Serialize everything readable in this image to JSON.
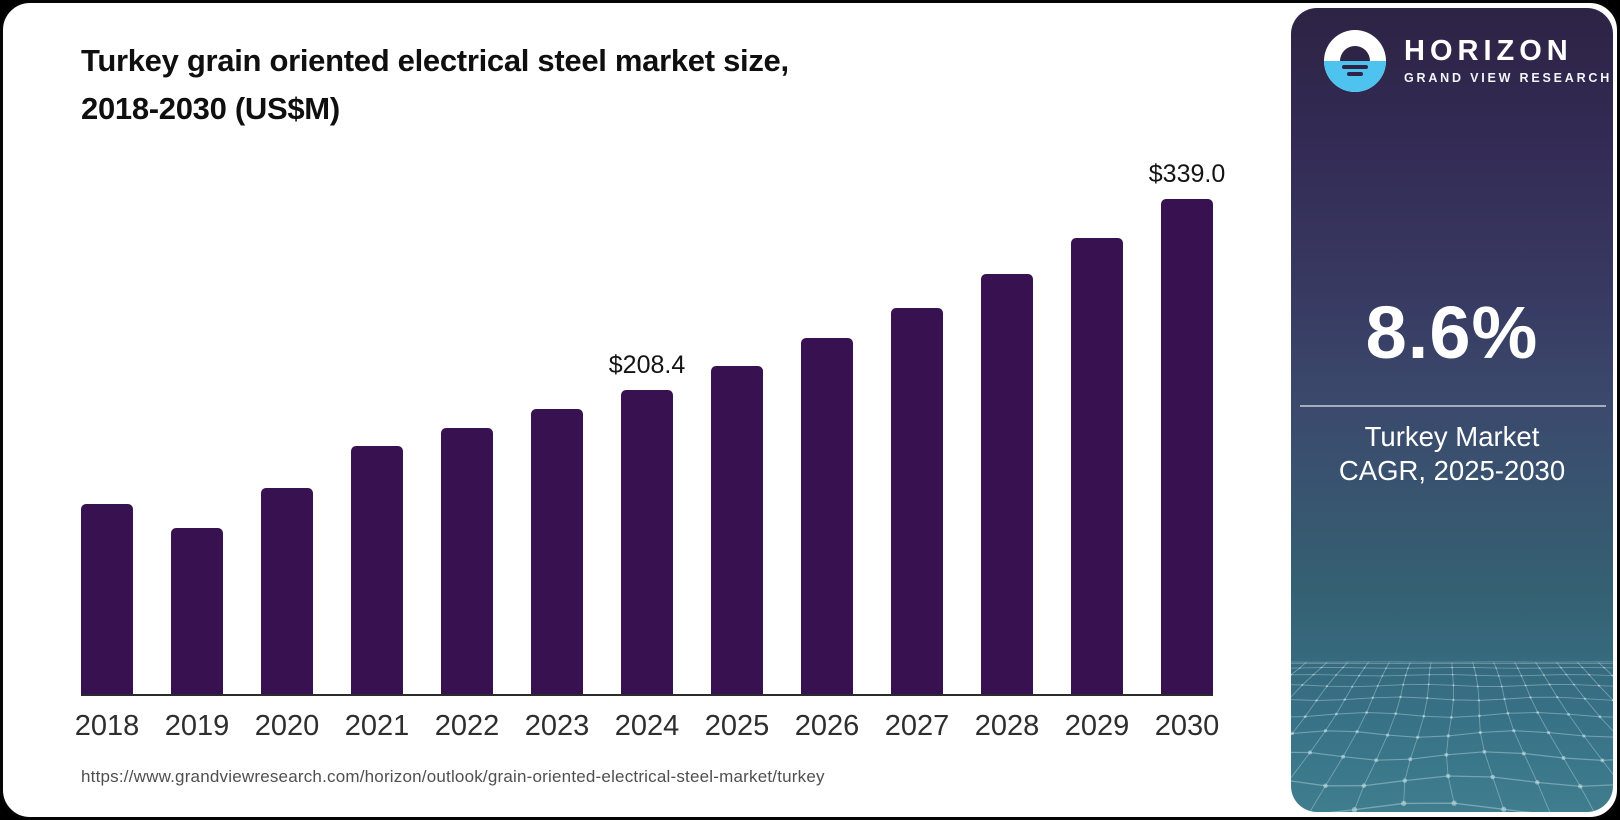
{
  "header": {
    "title_line1": "Turkey grain oriented electrical steel market size,",
    "title_line2": "2018-2030 (US$M)"
  },
  "footer": {
    "source_url": "https://www.grandviewresearch.com/horizon/outlook/grain-oriented-electrical-steel-market/turkey"
  },
  "sidebar": {
    "brand": "HORIZON",
    "subbrand": "GRAND VIEW RESEARCH",
    "cagr_value": "8.6%",
    "cagr_line1": "Turkey Market",
    "cagr_line2": "CAGR, 2025-2030",
    "logo_colors": {
      "sky": "#ffffff",
      "sea": "#4ec3f0",
      "sun": "#2e2546"
    }
  },
  "chart_data": {
    "type": "bar",
    "title": "Turkey grain oriented electrical steel market size, 2018-2030 (US$M)",
    "unit": "US$M",
    "categories": [
      "2018",
      "2019",
      "2020",
      "2021",
      "2022",
      "2023",
      "2024",
      "2025",
      "2026",
      "2027",
      "2028",
      "2029",
      "2030"
    ],
    "values": [
      130.4,
      113.9,
      140.7,
      169.8,
      182.3,
      194.9,
      208.4,
      224.3,
      243.6,
      264.5,
      287.3,
      312.0,
      339.0
    ],
    "data_labels": {
      "2024": "$208.4",
      "2030": "$339.0"
    },
    "ylim": [
      0,
      345
    ],
    "xlabel": "",
    "ylabel": "",
    "gridlines": false,
    "legend": "none",
    "bar_color": "#371150",
    "axis_line_color": "#2b2b2b"
  }
}
